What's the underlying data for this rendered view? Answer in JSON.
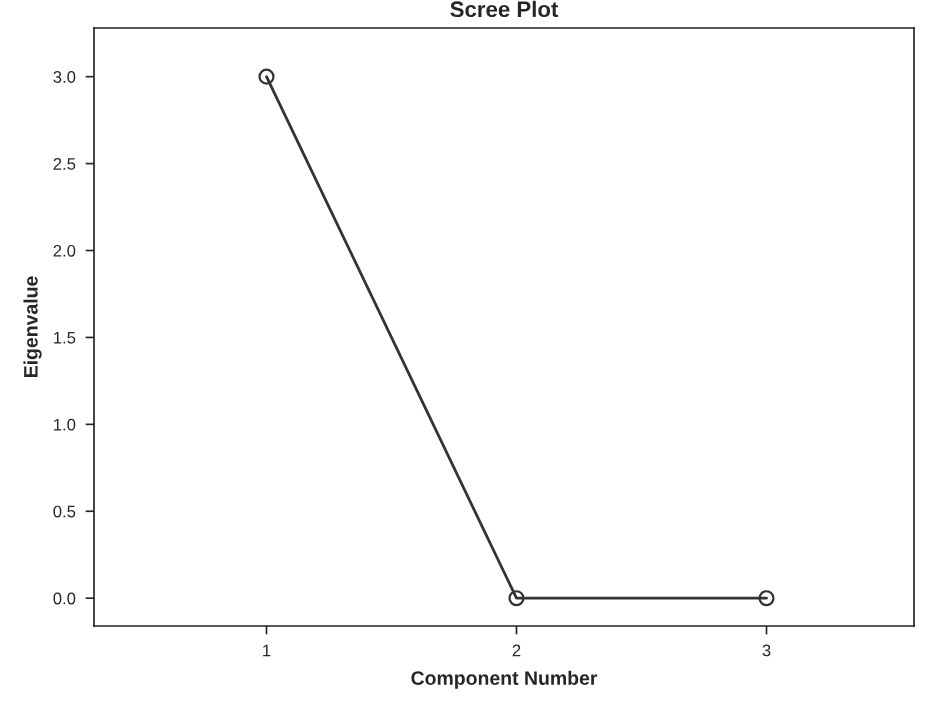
{
  "chart_data": {
    "type": "line",
    "title": "Scree Plot",
    "xlabel": "Component Number",
    "ylabel": "Eigenvalue",
    "categories": [
      "1",
      "2",
      "3"
    ],
    "series": [
      {
        "color": "#333333",
        "values": [
          3.0,
          0.0,
          0.0
        ]
      }
    ],
    "ylim": [
      -0.16,
      3.28
    ],
    "yticks": [
      {
        "value": 0,
        "label": "0.0"
      },
      {
        "value": 0.5,
        "label": "0.5"
      },
      {
        "value": 1,
        "label": "1.0"
      },
      {
        "value": 1.5,
        "label": "1.5"
      },
      {
        "value": 2,
        "label": "2.0"
      },
      {
        "value": 2.5,
        "label": "2.5"
      },
      {
        "value": 3,
        "label": "3.0"
      }
    ],
    "marker": "circle",
    "line_style": "solid",
    "grid": false,
    "legend": false
  }
}
